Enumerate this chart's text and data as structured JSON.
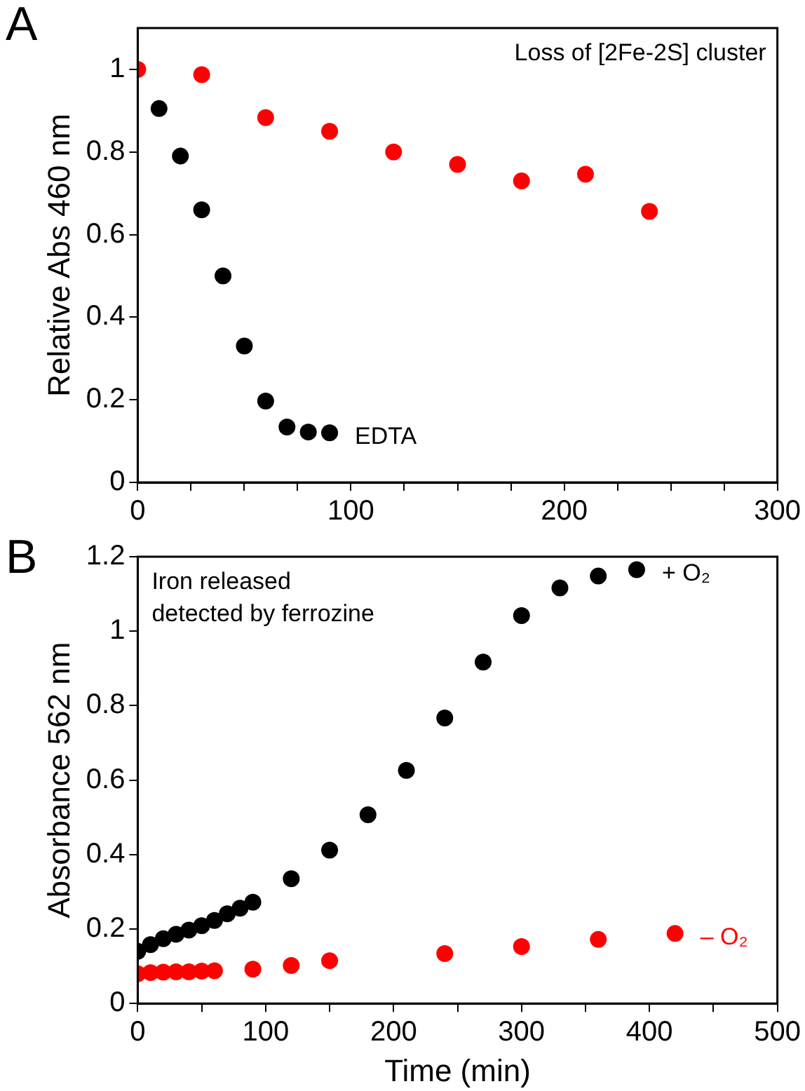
{
  "chart_data": [
    {
      "type": "scatter",
      "title": "A",
      "ylabel": "Relative Abs 460 nm",
      "annotations": [
        "Loss of [2Fe-2S] cluster"
      ],
      "marker": "circle",
      "xlim": [
        0,
        300
      ],
      "ylim": [
        0,
        1.1
      ],
      "xticks": [
        0,
        {
          "value": 25,
          "label": null
        },
        {
          "value": 50,
          "label": null
        },
        {
          "value": 75,
          "label": null
        },
        100,
        {
          "value": 125,
          "label": null
        },
        {
          "value": 150,
          "label": null
        },
        {
          "value": 175,
          "label": null
        },
        200,
        {
          "value": 225,
          "label": null
        },
        {
          "value": 250,
          "label": null
        },
        {
          "value": 275,
          "label": null
        },
        300
      ],
      "yticks": [
        0,
        0.2,
        0.4,
        0.6,
        0.8,
        1
      ],
      "series": [
        {
          "name": "EDTA",
          "color": "#000000",
          "x": [
            10,
            20,
            30,
            40,
            50,
            60,
            70,
            80,
            90
          ],
          "values": [
            0.905,
            0.79,
            0.66,
            0.5,
            0.33,
            0.197,
            0.134,
            0.122,
            0.12
          ]
        },
        {
          "color": "#ff0000",
          "x": [
            0,
            30,
            60,
            90,
            120,
            150,
            180,
            210,
            240
          ],
          "values": [
            1,
            0.987,
            0.883,
            0.85,
            0.8,
            0.77,
            0.73,
            0.746,
            0.656
          ]
        }
      ]
    },
    {
      "type": "scatter",
      "title": "B",
      "xlabel": "Time (min)",
      "ylabel": "Absorbance 562 nm",
      "annotations": [
        "Iron released\ndetected by ferrozine"
      ],
      "marker": "circle",
      "xlim": [
        0,
        500
      ],
      "ylim": [
        0,
        1.2
      ],
      "xticks": [
        0,
        {
          "value": 50,
          "label": null
        },
        100,
        {
          "value": 150,
          "label": null
        },
        200,
        {
          "value": 250,
          "label": null
        },
        300,
        {
          "value": 350,
          "label": null
        },
        400,
        {
          "value": 450,
          "label": null
        },
        500
      ],
      "yticks": [
        0,
        0.2,
        0.4,
        0.6,
        0.8,
        1,
        1.2
      ],
      "series": [
        {
          "name": "+ O₂",
          "color": "#000000",
          "x": [
            0,
            10,
            20,
            30,
            40,
            50,
            60,
            70,
            80,
            90,
            120,
            150,
            180,
            210,
            240,
            270,
            300,
            330,
            360,
            390
          ],
          "values": [
            0.14,
            0.158,
            0.174,
            0.186,
            0.197,
            0.209,
            0.223,
            0.241,
            0.256,
            0.272,
            0.335,
            0.412,
            0.507,
            0.626,
            0.767,
            0.917,
            1.042,
            1.116,
            1.148,
            1.165
          ]
        },
        {
          "name": "– O₂",
          "color": "#ff0000",
          "x": [
            0,
            10,
            20,
            30,
            40,
            50,
            60,
            90,
            120,
            150,
            240,
            300,
            360,
            420
          ],
          "values": [
            0.08,
            0.083,
            0.084,
            0.085,
            0.085,
            0.087,
            0.088,
            0.092,
            0.102,
            0.115,
            0.134,
            0.153,
            0.172,
            0.188
          ]
        }
      ]
    }
  ]
}
